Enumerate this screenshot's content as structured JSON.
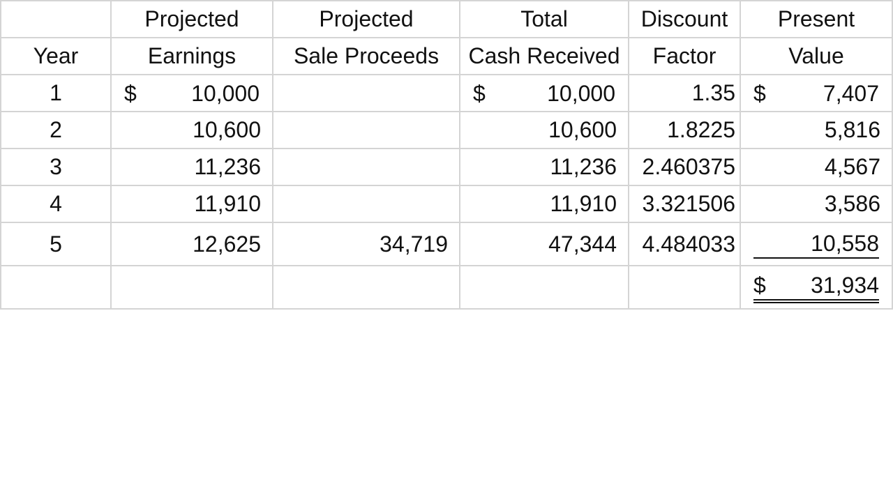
{
  "headers": {
    "row1": [
      "",
      "Projected",
      "Projected",
      "Total",
      "Discount",
      "Present"
    ],
    "row2": [
      "Year",
      "Earnings",
      "Sale Proceeds",
      "Cash Received",
      "Factor",
      "Value"
    ]
  },
  "currency_symbol": "$",
  "rows": [
    {
      "year": "1",
      "earnings": "10,000",
      "sale_proceeds": "",
      "cash_received": "10,000",
      "discount_factor": "1.35",
      "present_value": "7,407"
    },
    {
      "year": "2",
      "earnings": "10,600",
      "sale_proceeds": "",
      "cash_received": "10,600",
      "discount_factor": "1.8225",
      "present_value": "5,816"
    },
    {
      "year": "3",
      "earnings": "11,236",
      "sale_proceeds": "",
      "cash_received": "11,236",
      "discount_factor": "2.460375",
      "present_value": "4,567"
    },
    {
      "year": "4",
      "earnings": "11,910",
      "sale_proceeds": "",
      "cash_received": "11,910",
      "discount_factor": "3.321506",
      "present_value": "3,586"
    },
    {
      "year": "5",
      "earnings": "12,625",
      "sale_proceeds": "34,719",
      "cash_received": "47,344",
      "discount_factor": "4.484033",
      "present_value": "10,558"
    }
  ],
  "total": {
    "present_value": "31,934"
  },
  "colors": {
    "gridline": "#d4d4d4",
    "text": "#111111"
  }
}
